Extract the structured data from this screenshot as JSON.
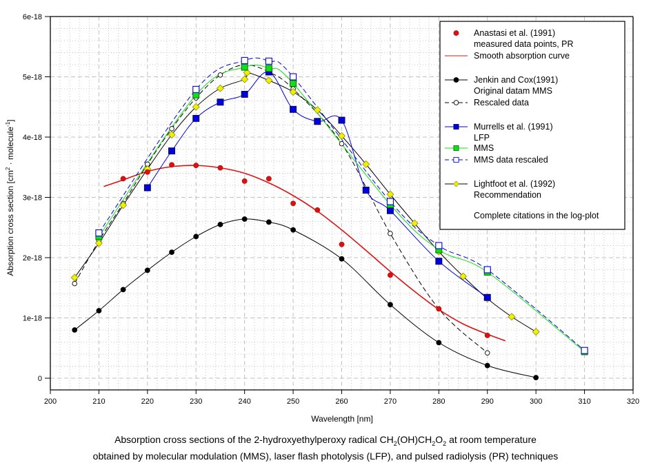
{
  "chart_data": {
    "type": "line",
    "title": "",
    "xlabel": "Wavelength [nm]",
    "ylabel_main": "Absorption cross section [cm",
    "ylabel_sup1": "2",
    "ylabel_mid": " · molecule",
    "ylabel_sup2": "-1",
    "ylabel_end": "]",
    "xlim": [
      200,
      320
    ],
    "ylim": [
      0,
      6e-18
    ],
    "x_ticks": [
      200,
      210,
      220,
      230,
      240,
      250,
      260,
      270,
      280,
      290,
      300,
      310,
      320
    ],
    "x_tick_labels": [
      "200",
      "210",
      "220",
      "230",
      "240",
      "250",
      "260",
      "270",
      "280",
      "290",
      "300",
      "310",
      "320"
    ],
    "y_ticks": [
      0,
      1e-18,
      2e-18,
      3e-18,
      4e-18,
      5e-18,
      6e-18
    ],
    "y_tick_labels": [
      "0",
      "1e-18",
      "2e-18",
      "3e-18",
      "4e-18",
      "5e-18",
      "6e-18"
    ],
    "y_unit_scale": 1e-18,
    "grid": true,
    "legend_position": "top-right",
    "series": [
      {
        "name": "Anastasi et al. (1991) measured data points, PR",
        "key": "anastasi-points",
        "color": "#e01010",
        "marker": "circle-filled",
        "line": "none",
        "x": [
          215,
          220,
          225,
          230,
          235,
          240,
          245,
          250,
          255,
          260,
          270,
          280,
          290
        ],
        "y": [
          3.31e-18,
          3.42e-18,
          3.54e-18,
          3.53e-18,
          3.49e-18,
          3.27e-18,
          3.31e-18,
          2.9e-18,
          2.79e-18,
          2.22e-18,
          1.71e-18,
          1.15e-18,
          7.1e-19
        ]
      },
      {
        "name": "Smooth absorption curve",
        "key": "anastasi-smooth",
        "color": "#e01010",
        "marker": "none",
        "line": "solid",
        "x": [
          211,
          215,
          220,
          225,
          230,
          235,
          240,
          245,
          250,
          255,
          260,
          265,
          270,
          275,
          280,
          285,
          290,
          293.7
        ],
        "y": [
          3.18e-18,
          3.29e-18,
          3.43e-18,
          3.51e-18,
          3.53e-18,
          3.49e-18,
          3.4e-18,
          3.24e-18,
          3.03e-18,
          2.77e-18,
          2.46e-18,
          2.12e-18,
          1.77e-18,
          1.44e-18,
          1.14e-18,
          9e-19,
          7.3e-19,
          6.2e-19
        ]
      },
      {
        "name": "Jenkin and Cox(1991) Original datam MMS",
        "key": "jenkin-original",
        "color": "#000000",
        "marker": "circle-filled",
        "line": "solid",
        "x": [
          205,
          210,
          215,
          220,
          225,
          230,
          235,
          240,
          245,
          250,
          260,
          270,
          280,
          290,
          300
        ],
        "y": [
          8e-19,
          1.12e-18,
          1.47e-18,
          1.79e-18,
          2.09e-18,
          2.35e-18,
          2.55e-18,
          2.64e-18,
          2.59e-18,
          2.46e-18,
          1.98e-18,
          1.22e-18,
          5.9e-19,
          2.1e-19,
          1e-20
        ]
      },
      {
        "name": "Rescaled data",
        "key": "jenkin-rescaled",
        "color": "#000000",
        "marker": "circle-open",
        "line": "dashed",
        "x": [
          205,
          210,
          215,
          220,
          225,
          230,
          235,
          240,
          245,
          250,
          260,
          270,
          280,
          290
        ],
        "y": [
          1.57e-18,
          2.28e-18,
          2.9e-18,
          3.55e-18,
          4.14e-18,
          4.65e-18,
          5.03e-18,
          5.2e-18,
          5.08e-18,
          4.8e-18,
          3.89e-18,
          2.4e-18,
          1.15e-18,
          4.2e-19
        ]
      },
      {
        "name": "Murrells et al. (1991) LFP",
        "key": "murrells-lfp",
        "color": "#0000e0",
        "marker": "square-filled",
        "line": "solid",
        "x": [
          220,
          225,
          230,
          235,
          240,
          245,
          250,
          255,
          260,
          265,
          270,
          280,
          290
        ],
        "y": [
          3.16e-18,
          3.77e-18,
          4.31e-18,
          4.58e-18,
          4.71e-18,
          5.08e-18,
          4.46e-18,
          4.26e-18,
          4.28e-18,
          3.12e-18,
          2.78e-18,
          1.94e-18,
          1.34e-18
        ]
      },
      {
        "name": "MMS",
        "key": "murrells-mms",
        "color": "#10e010",
        "marker": "square-filled",
        "line": "solid",
        "x": [
          210,
          230,
          240,
          245,
          250,
          270,
          280,
          290,
          310
        ],
        "y": [
          2.35e-18,
          4.7e-18,
          5.16e-18,
          5.14e-18,
          4.89e-18,
          2.88e-18,
          2.13e-18,
          1.76e-18,
          4.4e-19
        ]
      },
      {
        "name": "MMS data rescaled",
        "key": "murrells-mms-rescaled",
        "color": "#0000e0",
        "marker": "square-open",
        "line": "dashed",
        "x": [
          210,
          230,
          240,
          245,
          250,
          270,
          280,
          290,
          310
        ],
        "y": [
          2.41e-18,
          4.79e-18,
          5.27e-18,
          5.26e-18,
          5e-18,
          2.93e-18,
          2.2e-18,
          1.8e-18,
          4.6e-19
        ]
      },
      {
        "name": "Lightfoot et al. (1992) Recommendation",
        "key": "lightfoot",
        "color": "#f0f000",
        "line_color": "#000000",
        "marker": "diamond-filled",
        "line": "solid",
        "x": [
          205,
          210,
          215,
          220,
          225,
          230,
          235,
          240,
          240.5,
          245,
          250,
          255,
          260,
          265,
          270,
          275,
          280,
          285,
          290,
          295,
          300
        ],
        "y": [
          1.67e-18,
          2.24e-18,
          2.87e-18,
          3.47e-18,
          4.04e-18,
          4.5e-18,
          4.81e-18,
          4.96e-18,
          5.07e-18,
          4.94e-18,
          4.75e-18,
          4.45e-18,
          4.02e-18,
          3.55e-18,
          3.05e-18,
          2.57e-18,
          2.1e-18,
          1.69e-18,
          1.32e-18,
          1.02e-18,
          7.7e-19
        ]
      }
    ],
    "legend": {
      "entries": [
        {
          "key": "anastasi-points",
          "lines": [
            "Anastasi et al. (1991)",
            "measured data points, PR"
          ]
        },
        {
          "key": "anastasi-smooth",
          "lines": [
            "Smooth absorption curve"
          ]
        },
        {
          "key": "jenkin-original",
          "lines": [
            "Jenkin and Cox(1991)",
            "Original datam MMS"
          ]
        },
        {
          "key": "jenkin-rescaled",
          "lines": [
            "Rescaled data"
          ]
        },
        {
          "key": "murrells-lfp",
          "lines": [
            "Murrells et al. (1991)",
            "LFP"
          ]
        },
        {
          "key": "murrells-mms",
          "lines": [
            "MMS"
          ]
        },
        {
          "key": "murrells-mms-rescaled",
          "lines": [
            "MMS data rescaled"
          ]
        },
        {
          "key": "lightfoot",
          "lines": [
            "Lightfoot et al. (1992)",
            "Recommendation"
          ]
        }
      ],
      "note": "Complete citations in the log-plot"
    }
  },
  "caption": {
    "line1_pre": "Absorption cross sections of the 2-hydroxyethylperoxy radical  CH",
    "line1_sub1": "2",
    "line1_mid1": "(OH)CH",
    "line1_sub2": "2",
    "line1_mid2": "O",
    "line1_sub3": "2",
    "line1_post": " at room temperature",
    "line2": "obtained by molecular modulation (MMS), laser flash photolysis (LFP), and pulsed radiolysis (PR) techniques"
  }
}
